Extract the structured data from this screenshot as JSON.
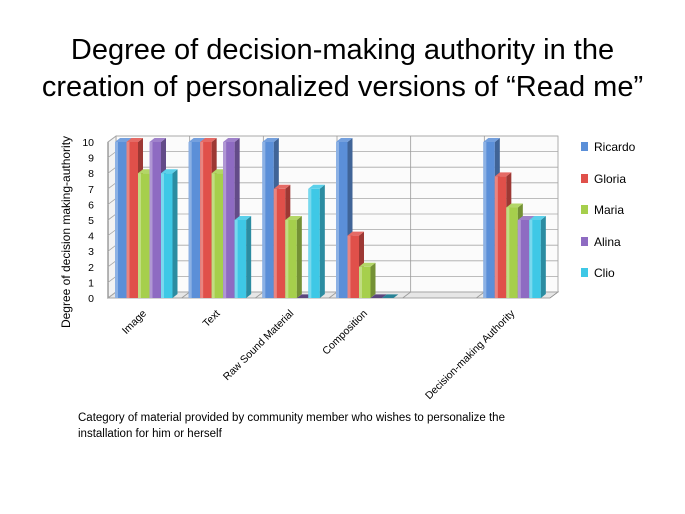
{
  "slide": {
    "title_line1": "Degree of decision-making authority in the",
    "title_line2": "creation of personalized versions of “Read me”",
    "caption": "Category of material provided by community member who wishes to personalize the installation for him or herself"
  },
  "chart_data": {
    "type": "bar",
    "title": "",
    "xlabel": "",
    "ylabel": "Degree of decision making-authority",
    "ylim": [
      0,
      10
    ],
    "yticks": [
      0,
      1,
      2,
      3,
      4,
      5,
      6,
      7,
      8,
      9,
      10
    ],
    "grid": true,
    "legend_position": "right",
    "categories": [
      "Image",
      "Text",
      "Raw Sound Material",
      "Composition",
      "",
      "Decision-making Authority"
    ],
    "series": [
      {
        "name": "Ricardo",
        "color": "#5b8fd8",
        "values": [
          10,
          10,
          10,
          10,
          null,
          10
        ]
      },
      {
        "name": "Gloria",
        "color": "#e0504a",
        "values": [
          10,
          10,
          7,
          4,
          null,
          7.8
        ]
      },
      {
        "name": "Maria",
        "color": "#a6cf4c",
        "values": [
          8,
          8,
          5,
          2,
          null,
          5.8
        ]
      },
      {
        "name": "Alina",
        "color": "#8e6bc2",
        "values": [
          10,
          10,
          0,
          0,
          null,
          5
        ]
      },
      {
        "name": "Clio",
        "color": "#3ec8e6",
        "values": [
          8,
          5,
          7,
          0,
          null,
          5
        ]
      }
    ]
  }
}
